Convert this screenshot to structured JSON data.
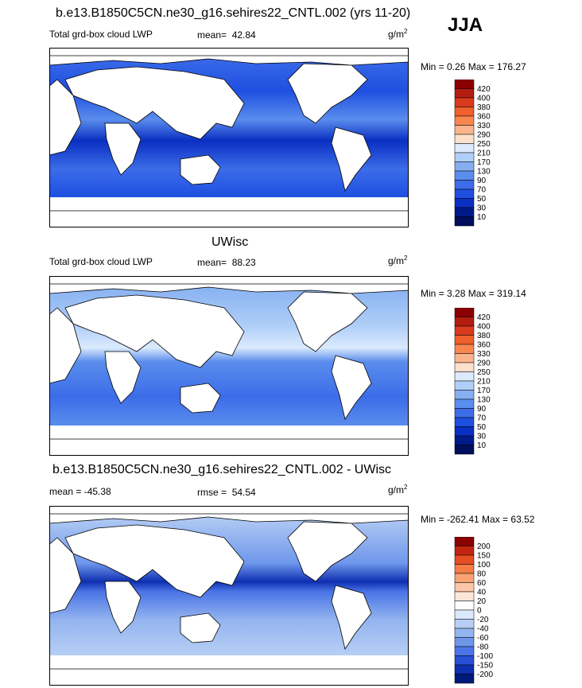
{
  "header": {
    "run_title": "b.e13.B1850C5CN.ne30_g16.sehires22_CNTL.002 (yrs 11-20)",
    "season": "JJA"
  },
  "panels": [
    {
      "id": "model",
      "title": "",
      "left_label": "Total grd-box cloud LWP",
      "stat_label": "mean=",
      "stat_value": "42.84",
      "unit_base": "g/m",
      "unit_exp": "2",
      "range_text": "Min =   0.26 Max = 176.27",
      "colorbar_labels": [
        "420",
        "400",
        "380",
        "360",
        "330",
        "290",
        "250",
        "210",
        "170",
        "130",
        "90",
        "70",
        "50",
        "30",
        "10"
      ]
    },
    {
      "id": "obs",
      "title": "UWisc",
      "left_label": "Total grd-box cloud LWP",
      "stat_label": "mean=",
      "stat_value": "88.23",
      "unit_base": "g/m",
      "unit_exp": "2",
      "range_text": "Min =   3.28 Max = 319.14",
      "colorbar_labels": [
        "420",
        "400",
        "380",
        "360",
        "330",
        "290",
        "250",
        "210",
        "170",
        "130",
        "90",
        "70",
        "50",
        "30",
        "10"
      ]
    },
    {
      "id": "diff",
      "title": "b.e13.B1850C5CN.ne30_g16.sehires22_CNTL.002 - UWisc",
      "left_label": "mean = -45.38",
      "stat_label": "rmse =",
      "stat_value": "54.54",
      "unit_base": "g/m",
      "unit_exp": "2",
      "range_text": "Min = -262.41 Max =  63.52",
      "colorbar_labels": [
        "200",
        "150",
        "100",
        "80",
        "60",
        "40",
        "20",
        "0",
        "-20",
        "-40",
        "-60",
        "-80",
        "-100",
        "-150",
        "-200"
      ]
    }
  ],
  "colors": {
    "lwp_scale": [
      "#8b0000",
      "#b31c10",
      "#d93a1e",
      "#f0602c",
      "#f8874f",
      "#fbb48c",
      "#fde0cc",
      "#dbeafd",
      "#b0cff8",
      "#85aff1",
      "#5a8ded",
      "#3c6ce8",
      "#1f4fe0",
      "#0a2fc2",
      "#001a8a",
      "#000e5c"
    ],
    "diff_scale": [
      "#8b0000",
      "#c2250f",
      "#e54d22",
      "#f57c45",
      "#f9a274",
      "#fcc7a8",
      "#fde6d6",
      "#ffffff",
      "#dbe8fb",
      "#b7cff5",
      "#93b4ef",
      "#6e96eb",
      "#4b74e6",
      "#284fd6",
      "#0e2fb0",
      "#001a7a"
    ]
  }
}
